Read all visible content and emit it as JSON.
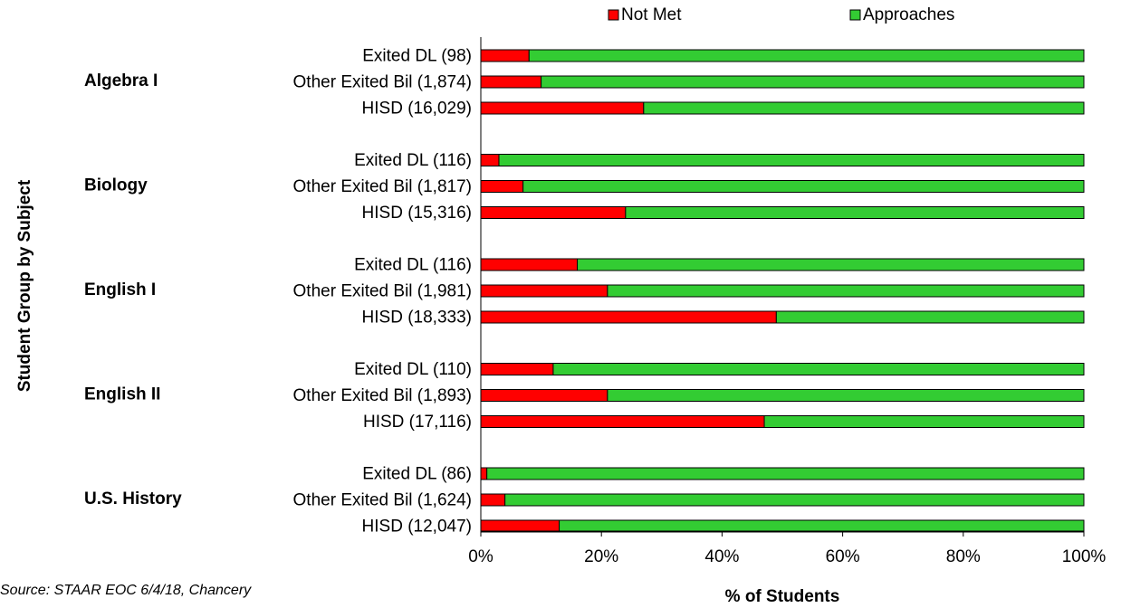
{
  "chart_data": {
    "type": "bar",
    "orientation": "horizontal",
    "stacked": true,
    "percent_scale": true,
    "xlabel": "% of Students",
    "ylabel": "Student Group by Subject",
    "xlim": [
      0,
      100
    ],
    "x_ticks": [
      "0%",
      "20%",
      "40%",
      "60%",
      "80%",
      "100%"
    ],
    "legend_position": "top",
    "grid": false,
    "series": [
      {
        "name": "Not Met",
        "color": "#ff0000"
      },
      {
        "name": "Approaches",
        "color": "#33cc33"
      }
    ],
    "groups": [
      {
        "label": "Algebra I",
        "bars": [
          {
            "label": "Exited DL (98)",
            "values": [
              8,
              92
            ]
          },
          {
            "label": "Other Exited Bil (1,874)",
            "values": [
              10,
              90
            ]
          },
          {
            "label": "HISD (16,029)",
            "values": [
              27,
              73
            ]
          }
        ]
      },
      {
        "label": "Biology",
        "bars": [
          {
            "label": "Exited DL (116)",
            "values": [
              3,
              97
            ]
          },
          {
            "label": "Other Exited Bil (1,817)",
            "values": [
              7,
              93
            ]
          },
          {
            "label": "HISD (15,316)",
            "values": [
              24,
              76
            ]
          }
        ]
      },
      {
        "label": "English I",
        "bars": [
          {
            "label": "Exited DL (116)",
            "values": [
              16,
              84
            ]
          },
          {
            "label": "Other Exited Bil (1,981)",
            "values": [
              21,
              79
            ]
          },
          {
            "label": "HISD (18,333)",
            "values": [
              49,
              51
            ]
          }
        ]
      },
      {
        "label": "English II",
        "bars": [
          {
            "label": "Exited DL (110)",
            "values": [
              12,
              88
            ]
          },
          {
            "label": "Other Exited Bil (1,893)",
            "values": [
              21,
              79
            ]
          },
          {
            "label": "HISD (17,116)",
            "values": [
              47,
              53
            ]
          }
        ]
      },
      {
        "label": "U.S. History",
        "bars": [
          {
            "label": "Exited DL (86)",
            "values": [
              1,
              99
            ]
          },
          {
            "label": "Other Exited Bil (1,624)",
            "values": [
              4,
              96
            ]
          },
          {
            "label": "HISD (12,047)",
            "values": [
              13,
              87
            ]
          }
        ]
      }
    ]
  },
  "footnote": "Source: STAAR EOC 6/4/18, Chancery"
}
